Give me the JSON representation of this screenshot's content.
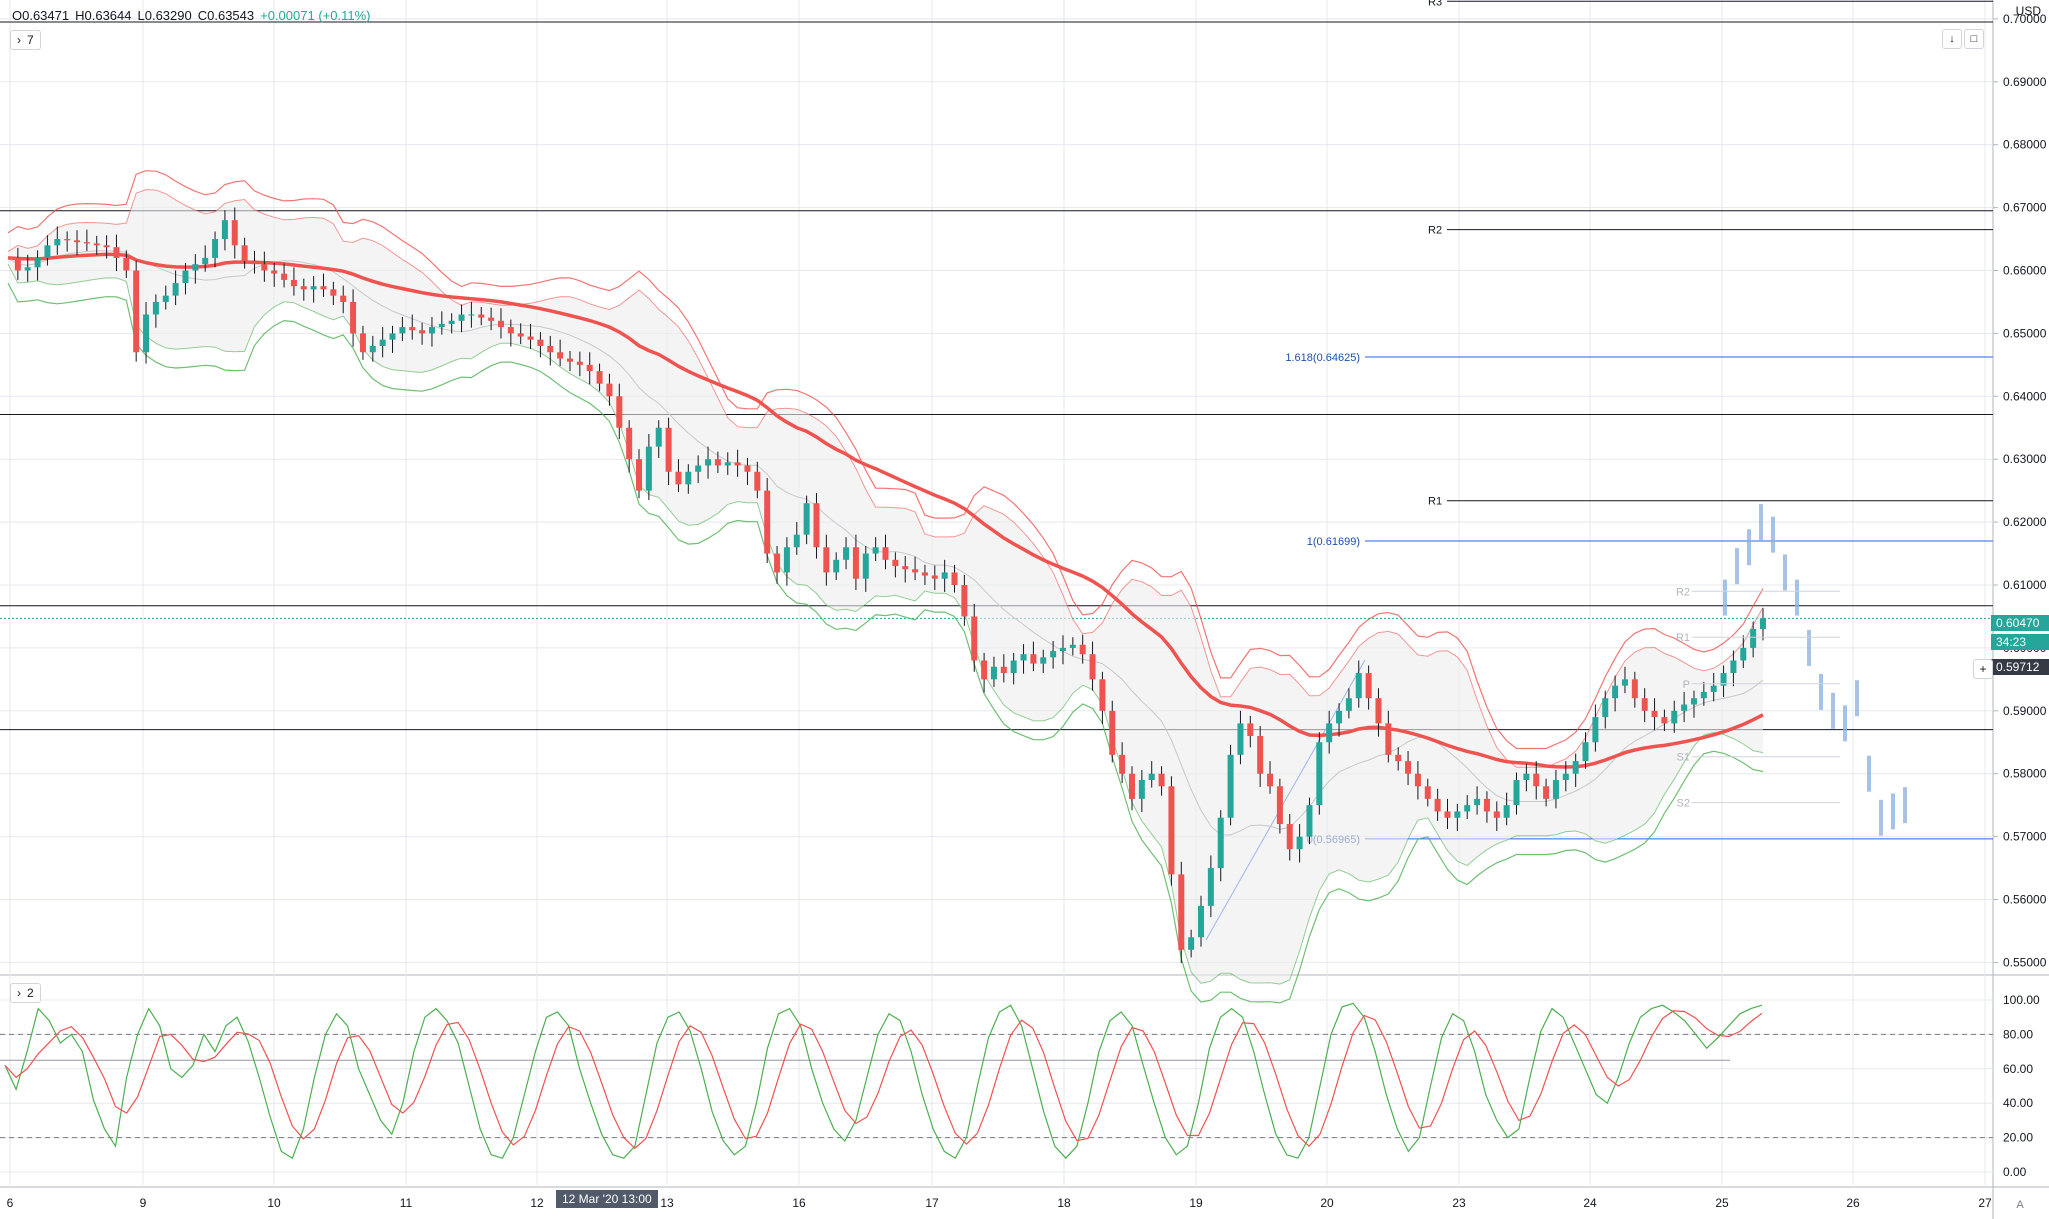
{
  "legend": {
    "open": "O0.63471",
    "high": "H0.63644",
    "low": "L0.63290",
    "close": "C0.63543",
    "change": "+0.00071 (+0.11%)"
  },
  "main_pane": {
    "collapse_label": "7"
  },
  "osc_pane": {
    "collapse_label": "2"
  },
  "axis": {
    "currency": "USD",
    "autoscale_label": "A"
  },
  "price_axis_labels": [
    "0.70000",
    "0.69000",
    "0.68000",
    "0.67000",
    "0.66000",
    "0.65000",
    "0.64000",
    "0.63000",
    "0.62000",
    "0.61000",
    "0.60000",
    "0.59000",
    "0.58000",
    "0.57000",
    "0.56000",
    "0.55000"
  ],
  "osc_axis_labels": [
    "100.00",
    "80.00",
    "60.00",
    "40.00",
    "20.00",
    "0.00"
  ],
  "time_labels": [
    "6",
    "9",
    "10",
    "11",
    "12",
    "13",
    "16",
    "17",
    "18",
    "19",
    "20",
    "23",
    "24",
    "25",
    "26",
    "27"
  ],
  "crosshair_time": "12 Mar '20  13:00",
  "price_tags": {
    "last": "0.60470",
    "countdown": "34:23",
    "crosshair": "0.59712"
  },
  "pivot_labels": {
    "R3": "R3",
    "R2": "R2",
    "R1": "R1",
    "P": "P"
  },
  "small_pivots": {
    "R2": "R2",
    "R1": "R1",
    "P": "P",
    "S1": "S1",
    "S2": "S2"
  },
  "fib_labels": {
    "f1618": "1.618(0.64625)",
    "f1": "1(0.61699)",
    "f0": "0(0.56965)"
  },
  "colors": {
    "up": "#26a69a",
    "down": "#ef5350",
    "ema": "#ef5350",
    "ema_green": "#4caf50",
    "fib": "#2962ff"
  },
  "chart_data": {
    "type": "candlestick",
    "ylim": [
      0.548,
      0.703
    ],
    "horizontal_levels": [
      0.6995,
      0.6695,
      0.6371,
      0.6067,
      0.587
    ],
    "pivots": {
      "R3": 0.7028,
      "R2": 0.6665,
      "R1": 0.6234
    },
    "fib": {
      "1.618": 0.64625,
      "1": 0.61699,
      "0": 0.56965
    },
    "last_price": 0.6047,
    "crosshair_price": 0.59712,
    "close_path": [
      0.662,
      0.66,
      0.6605,
      0.662,
      0.664,
      0.665,
      0.6648,
      0.6645,
      0.6643,
      0.664,
      0.6637,
      0.662,
      0.66,
      0.647,
      0.653,
      0.655,
      0.656,
      0.658,
      0.66,
      0.661,
      0.662,
      0.665,
      0.668,
      0.664,
      0.6615,
      0.661,
      0.66,
      0.6595,
      0.6585,
      0.6575,
      0.657,
      0.6575,
      0.657,
      0.656,
      0.655,
      0.65,
      0.647,
      0.648,
      0.649,
      0.65,
      0.651,
      0.6505,
      0.65,
      0.651,
      0.6515,
      0.652,
      0.653,
      0.653,
      0.6525,
      0.652,
      0.651,
      0.65,
      0.6495,
      0.649,
      0.648,
      0.647,
      0.646,
      0.6455,
      0.645,
      0.644,
      0.642,
      0.64,
      0.635,
      0.63,
      0.625,
      0.632,
      0.635,
      0.628,
      0.626,
      0.628,
      0.629,
      0.63,
      0.629,
      0.6295,
      0.629,
      0.628,
      0.625,
      0.615,
      0.612,
      0.616,
      0.618,
      0.623,
      0.616,
      0.612,
      0.614,
      0.616,
      0.611,
      0.615,
      0.616,
      0.614,
      0.613,
      0.6125,
      0.612,
      0.6115,
      0.611,
      0.612,
      0.61,
      0.605,
      0.598,
      0.595,
      0.597,
      0.596,
      0.598,
      0.599,
      0.5975,
      0.5985,
      0.5995,
      0.6,
      0.6005,
      0.599,
      0.595,
      0.59,
      0.583,
      0.58,
      0.576,
      0.579,
      0.58,
      0.578,
      0.564,
      0.552,
      0.554,
      0.559,
      0.565,
      0.573,
      0.583,
      0.588,
      0.586,
      0.58,
      0.578,
      0.572,
      0.568,
      0.57,
      0.575,
      0.585,
      0.588,
      0.59,
      0.592,
      0.596,
      0.592,
      0.588,
      0.583,
      0.582,
      0.58,
      0.578,
      0.576,
      0.574,
      0.573,
      0.574,
      0.575,
      0.576,
      0.574,
      0.573,
      0.575,
      0.579,
      0.58,
      0.578,
      0.576,
      0.579,
      0.58,
      0.582,
      0.585,
      0.589,
      0.592,
      0.594,
      0.595,
      0.592,
      0.59,
      0.589,
      0.588,
      0.59,
      0.591,
      0.592,
      0.593,
      0.594,
      0.596,
      0.598,
      0.6,
      0.603,
      0.6047
    ],
    "forecast_path": [
      0.608,
      0.613,
      0.616,
      0.62,
      0.618,
      0.612,
      0.608,
      0.6,
      0.593,
      0.59,
      0.588,
      0.592,
      0.58,
      0.573,
      0.574,
      0.575
    ],
    "stoch_k": [
      62,
      48,
      70,
      95,
      88,
      75,
      80,
      70,
      42,
      25,
      15,
      55,
      80,
      95,
      85,
      60,
      55,
      62,
      80,
      70,
      85,
      90,
      76,
      55,
      32,
      12,
      8,
      25,
      55,
      80,
      92,
      85,
      60,
      45,
      30,
      22,
      40,
      70,
      90,
      95,
      88,
      75,
      50,
      25,
      10,
      8,
      20,
      45,
      70,
      90,
      93,
      85,
      60,
      40,
      22,
      10,
      8,
      15,
      45,
      75,
      90,
      93,
      82,
      60,
      35,
      18,
      10,
      15,
      40,
      72,
      92,
      95,
      85,
      60,
      40,
      25,
      18,
      30,
      55,
      80,
      92,
      88,
      70,
      45,
      25,
      12,
      8,
      20,
      50,
      78,
      93,
      97,
      85,
      60,
      35,
      15,
      8,
      15,
      40,
      70,
      88,
      93,
      85,
      62,
      40,
      20,
      10,
      15,
      40,
      72,
      90,
      95,
      90,
      70,
      45,
      22,
      10,
      8,
      20,
      50,
      80,
      96,
      98,
      90,
      70,
      45,
      25,
      12,
      20,
      50,
      78,
      92,
      88,
      70,
      45,
      30,
      20,
      25,
      55,
      82,
      95,
      90,
      75,
      60,
      45,
      40,
      55,
      75,
      90,
      95,
      97,
      93,
      88,
      80,
      72,
      78,
      85,
      92,
      95,
      97
    ]
  }
}
